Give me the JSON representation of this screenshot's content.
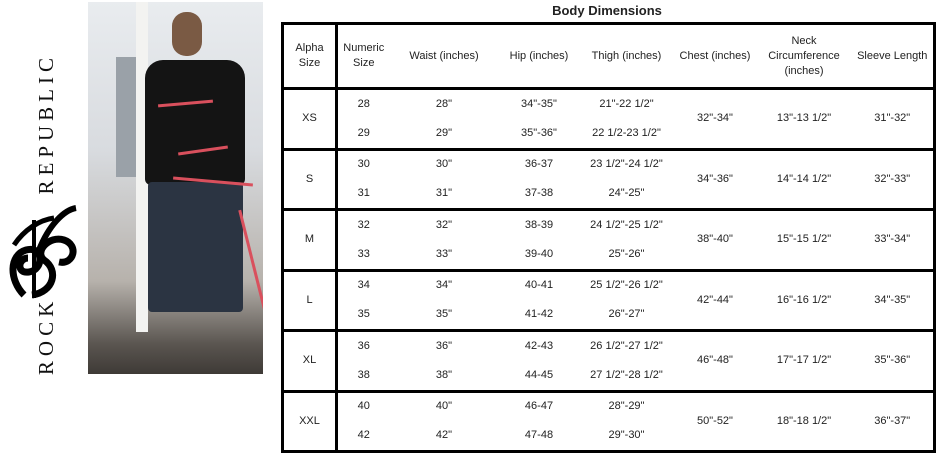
{
  "brand": {
    "name": "ROCK REPUBLIC",
    "monogram": "RR"
  },
  "title": "Body Dimensions",
  "headers": [
    "Alpha Size",
    "Numeric Size",
    "Waist (inches)",
    "Hip (inches)",
    "Thigh (inches)",
    "Chest (inches)",
    "Neck Circumference (inches)",
    "Sleeve Length"
  ],
  "groups": [
    {
      "alpha": "XS",
      "chest": "32\"-34\"",
      "neck": "13\"-13 1/2\"",
      "sleeve": "31\"-32\"",
      "rows": [
        {
          "numeric": "28",
          "waist": "28\"",
          "hip": "34\"-35\"",
          "thigh": "21\"-22 1/2\""
        },
        {
          "numeric": "29",
          "waist": "29\"",
          "hip": "35\"-36\"",
          "thigh": "22 1/2-23 1/2\""
        }
      ]
    },
    {
      "alpha": "S",
      "chest": "34\"-36\"",
      "neck": "14\"-14 1/2\"",
      "sleeve": "32\"-33\"",
      "rows": [
        {
          "numeric": "30",
          "waist": "30\"",
          "hip": "36-37",
          "thigh": "23 1/2\"-24 1/2\""
        },
        {
          "numeric": "31",
          "waist": "31\"",
          "hip": "37-38",
          "thigh": "24\"-25\""
        }
      ]
    },
    {
      "alpha": "M",
      "chest": "38\"-40\"",
      "neck": "15\"-15 1/2\"",
      "sleeve": "33\"-34\"",
      "rows": [
        {
          "numeric": "32",
          "waist": "32\"",
          "hip": "38-39",
          "thigh": "24 1/2\"-25 1/2\""
        },
        {
          "numeric": "33",
          "waist": "33\"",
          "hip": "39-40",
          "thigh": "25\"-26\""
        }
      ]
    },
    {
      "alpha": "L",
      "chest": "42\"-44\"",
      "neck": "16\"-16 1/2\"",
      "sleeve": "34\"-35\"",
      "rows": [
        {
          "numeric": "34",
          "waist": "34\"",
          "hip": "40-41",
          "thigh": "25 1/2\"-26 1/2\""
        },
        {
          "numeric": "35",
          "waist": "35\"",
          "hip": "41-42",
          "thigh": "26\"-27\""
        }
      ]
    },
    {
      "alpha": "XL",
      "chest": "46\"-48\"",
      "neck": "17\"-17 1/2\"",
      "sleeve": "35\"-36\"",
      "rows": [
        {
          "numeric": "36",
          "waist": "36\"",
          "hip": "42-43",
          "thigh": "26 1/2\"-27 1/2\""
        },
        {
          "numeric": "38",
          "waist": "38\"",
          "hip": "44-45",
          "thigh": "27 1/2\"-28 1/2\""
        }
      ]
    },
    {
      "alpha": "XXL",
      "chest": "50\"-52\"",
      "neck": "18\"-18 1/2\"",
      "sleeve": "36\"-37\"",
      "rows": [
        {
          "numeric": "40",
          "waist": "40\"",
          "hip": "46-47",
          "thigh": "28\"-29\""
        },
        {
          "numeric": "42",
          "waist": "42\"",
          "hip": "47-48",
          "thigh": "29\"-30\""
        }
      ]
    }
  ]
}
